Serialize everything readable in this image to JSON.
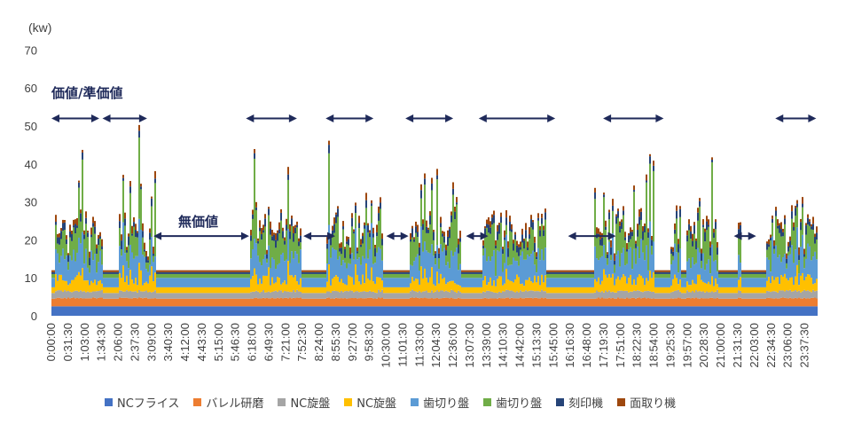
{
  "chart_data": {
    "type": "area",
    "ylabel": "(kw)",
    "ylim": [
      0,
      70
    ],
    "yticks": [
      0,
      10,
      20,
      30,
      40,
      50,
      60,
      70
    ],
    "x_tick_labels": [
      "0:00:00",
      "0:31:30",
      "1:03:00",
      "1:34:30",
      "2:06:00",
      "2:37:30",
      "3:09:00",
      "3:40:30",
      "4:12:00",
      "4:43:30",
      "5:15:00",
      "5:46:30",
      "6:18:00",
      "6:49:30",
      "7:21:00",
      "7:52:30",
      "8:24:00",
      "8:55:30",
      "9:27:00",
      "9:58:30",
      "10:30:00",
      "11:01:30",
      "11:33:00",
      "12:04:30",
      "12:36:00",
      "13:07:30",
      "13:39:00",
      "14:10:30",
      "14:42:00",
      "15:13:30",
      "15:45:00",
      "16:16:30",
      "16:48:00",
      "17:19:30",
      "17:51:00",
      "18:22:30",
      "18:54:00",
      "19:25:30",
      "19:57:00",
      "20:28:30",
      "21:00:00",
      "21:31:30",
      "22:03:00",
      "22:34:30",
      "23:06:00",
      "23:37:30"
    ],
    "series": [
      {
        "name": "NCフライス",
        "color": "#4472c4",
        "base": 2.5
      },
      {
        "name": "バレル研磨",
        "color": "#ed7d31",
        "base": 2.0
      },
      {
        "name": "NC旋盤",
        "color": "#a5a5a5",
        "base": 1.5
      },
      {
        "name": "NC旋盤",
        "color": "#ffc000",
        "base": 1.5
      },
      {
        "name": "歯切り盤",
        "color": "#5b9bd5",
        "base": 2.5
      },
      {
        "name": "歯切り盤",
        "color": "#70ad47",
        "base": 1.0
      },
      {
        "name": "刻印機",
        "color": "#264478",
        "base": 0.5
      },
      {
        "name": "面取り機",
        "color": "#9e480e",
        "base": 0.5
      }
    ],
    "idle_total": 12,
    "active_periods": [
      [
        "0:06",
        "1:36"
      ],
      [
        "2:06",
        "3:16"
      ],
      [
        "6:12",
        "7:48"
      ],
      [
        "8:36",
        "10:24"
      ],
      [
        "11:12",
        "12:48"
      ],
      [
        "13:30",
        "15:30"
      ],
      [
        "17:00",
        "18:54"
      ],
      [
        "19:24",
        "19:42"
      ],
      [
        "19:54",
        "20:54"
      ],
      [
        "21:30",
        "21:36"
      ],
      [
        "22:24",
        "23:59"
      ]
    ],
    "annotations": {
      "value_label": "価値/準価値",
      "non_value_label": "無価値"
    },
    "arrows": {
      "value": [
        [
          "0:00",
          "1:30"
        ],
        [
          "1:36",
          "3:00"
        ],
        [
          "6:06",
          "7:42"
        ],
        [
          "8:36",
          "10:06"
        ],
        [
          "11:06",
          "12:36"
        ],
        [
          "13:24",
          "15:48"
        ],
        [
          "17:18",
          "19:12"
        ],
        [
          "22:42",
          "23:59"
        ]
      ],
      "non_value": [
        [
          "3:12",
          "6:12"
        ],
        [
          "7:54",
          "8:54"
        ],
        [
          "10:30",
          "11:12"
        ],
        [
          "13:00",
          "13:42"
        ],
        [
          "16:12",
          "17:42"
        ],
        [
          "21:24",
          "22:06"
        ]
      ]
    },
    "arrow_levels": {
      "value": 52,
      "non_value": 21
    },
    "legend": [
      "NCフライス",
      "バレル研磨",
      "NC旋盤",
      "NC旋盤",
      "歯切り盤",
      "歯切り盤",
      "刻印機",
      "面取り機"
    ],
    "grid": false
  }
}
